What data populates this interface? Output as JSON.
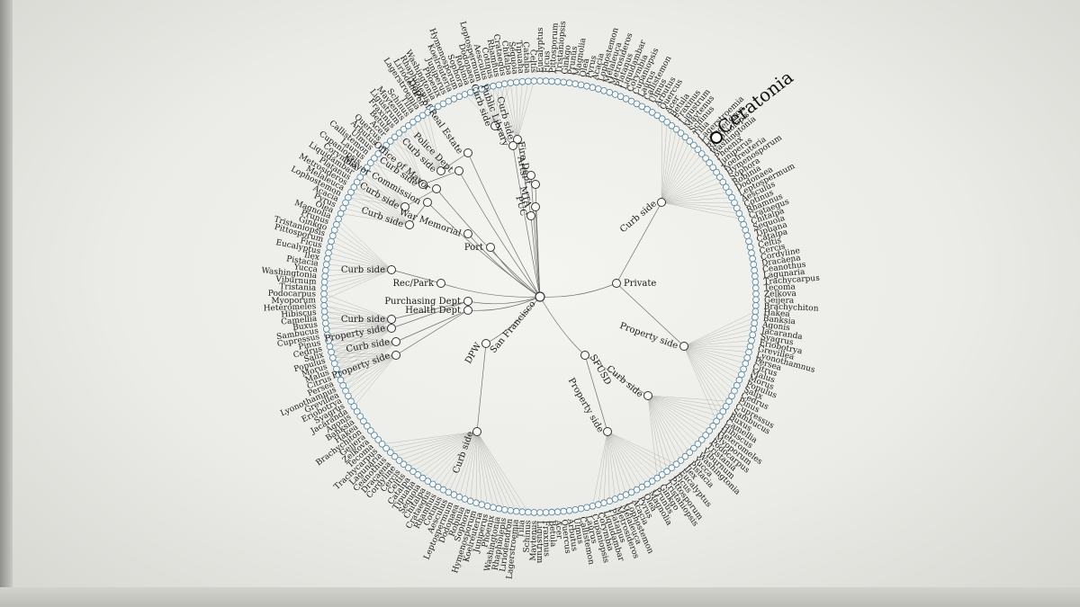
{
  "tree": {
    "root": "San Francisco",
    "caretakers": [
      "DPW",
      "Private",
      "SFUSD",
      "Rec/Park",
      "Purchasing Dept",
      "Health Dept",
      "Port",
      "War Memorial",
      "Mayor Commission",
      "Office of Mayor",
      "Police Dept",
      "Dept of Real Estate",
      "Public Library",
      "PUC",
      "MTA",
      "Fire Dept",
      "Arts"
    ],
    "site_labels": {
      "curb_side": "Curb side",
      "property_side": "Property side"
    },
    "highlighted_leaf": "Ceratonia",
    "leaf_names": [
      "Eucalyptus",
      "Ficus",
      "Pittosporum",
      "Tristaniopsis",
      "Ginkgo",
      "Prunus",
      "Magnolia",
      "Olea",
      "Pyrus",
      "Acacia",
      "Lophostemon",
      "Melaleuca",
      "Metrosideros",
      "Platanus",
      "Liquidambar",
      "Corymbia",
      "Cupaniopsis",
      "Laurus",
      "Callistemon",
      "Ulmus",
      "Arbutus",
      "Quercus",
      "Acer",
      "Betula",
      "Fraxinus",
      "Ligustrum",
      "Maytenus",
      "Schinus",
      "Tilia",
      "Lagerstroemia",
      "Liriodendron",
      "Rhaphiolepis",
      "Washingtonia",
      "Phoenix",
      "Juniperus",
      "Koelreuteria",
      "Hymenosporum",
      "Sophora",
      "Robinia",
      "Dodonaea",
      "Leptospermum",
      "Aesculus",
      "Cotinus",
      "Rhamnus",
      "Crataegus",
      "Chitalpa",
      "Sequoia",
      "Tipuana",
      "Catalpa",
      "Celtis",
      "Cercis",
      "Cordyline",
      "Dracaena",
      "Ceanothus",
      "Lagunaria",
      "Trachycarpus",
      "Tecoma",
      "Zelkova",
      "Geijera",
      "Brachychiton",
      "Hakea",
      "Banksia",
      "Agonis",
      "Jacaranda",
      "Syagrus",
      "Eriobotrya",
      "Grevillea",
      "Lyonothamnus",
      "Persea",
      "Citrus",
      "Malus",
      "Morus",
      "Populus",
      "Salix",
      "Cedrus",
      "Pinus",
      "Cupressus",
      "Sambucus",
      "Buxus",
      "Camellia",
      "Hibiscus",
      "Heteromeles",
      "Myoporum",
      "Podocarpus",
      "Tristania",
      "Viburnum",
      "Washingtonia",
      "Yucca",
      "Pistacia",
      "Ilex"
    ]
  },
  "colors": {
    "background": "#eeeeea",
    "link": "#6f6f6f",
    "node_stroke": "#333333",
    "leaf_ring_stroke": "#4f7f9a",
    "highlight": "#111111"
  }
}
